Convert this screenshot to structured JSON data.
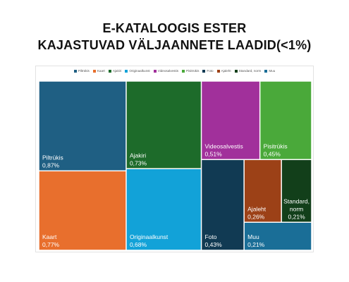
{
  "title": {
    "line1": "E-KATALOOGIS ESTER",
    "line2": "KAJASTUVAD VÄLJAANNETE LAADID(<1%)"
  },
  "chart_data": {
    "type": "treemap",
    "title": "E-KATALOOGIS ESTER KAJASTUVAD VÄLJAANNETE LAADID(<1%)",
    "legend_position": "top",
    "unit": "%",
    "series": [
      {
        "name": "Piltrükis",
        "label": "Piltrükis",
        "value": 0.87,
        "value_label": "0,87%",
        "color": "#1f5f83"
      },
      {
        "name": "Kaart",
        "label": "Kaart",
        "value": 0.77,
        "value_label": "0,77%",
        "color": "#e86f2d"
      },
      {
        "name": "Ajakiri",
        "label": "Ajakiri",
        "value": 0.73,
        "value_label": "0,73%",
        "color": "#1d6b2a"
      },
      {
        "name": "Originaalkunst",
        "label": "Originaalkunst",
        "value": 0.68,
        "value_label": "0,68%",
        "color": "#12a2d8"
      },
      {
        "name": "Videosalvestis",
        "label": "Videosalvestis",
        "value": 0.51,
        "value_label": "0,51%",
        "color": "#a1309b"
      },
      {
        "name": "Pisitrükis",
        "label": "Pisitrükis",
        "value": 0.45,
        "value_label": "0,45%",
        "color": "#4aa93a"
      },
      {
        "name": "Foto",
        "label": "Foto",
        "value": 0.43,
        "value_label": "0,43%",
        "color": "#113a53"
      },
      {
        "name": "Ajaleht",
        "label": "Ajaleht",
        "value": 0.26,
        "value_label": "0,26%",
        "color": "#9c4117"
      },
      {
        "name": "Standard, norm",
        "label": "Standard, norm",
        "value": 0.21,
        "value_label": "0,21%",
        "color": "#123f1a"
      },
      {
        "name": "Muu",
        "label": "Muu",
        "value": 0.21,
        "value_label": "0,21%",
        "color": "#1a6e97"
      }
    ]
  }
}
